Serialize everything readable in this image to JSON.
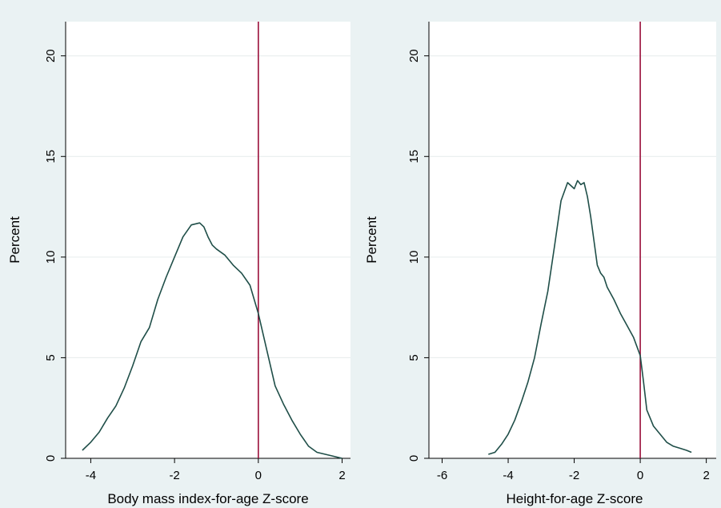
{
  "colors": {
    "outer_background": "#eaf2f3",
    "plot_background": "#ffffff",
    "gridline": "#e6ecec",
    "density_line": "#1f4e48",
    "reference_line": "#9a0f3a"
  },
  "chart_data": [
    {
      "type": "line",
      "xlabel": "Body mass index-for-age Z-score",
      "ylabel": "Percent",
      "xlim": [
        -4.6,
        2.2
      ],
      "ylim": [
        0,
        21.7
      ],
      "x_ticks": [
        -4,
        -2,
        0,
        2
      ],
      "y_ticks": [
        0,
        5,
        10,
        15,
        20
      ],
      "grid": true,
      "reference_line_x": 0,
      "series": [
        {
          "x": [
            -4.2,
            -4.0,
            -3.8,
            -3.6,
            -3.4,
            -3.2,
            -3.0,
            -2.8,
            -2.6,
            -2.4,
            -2.2,
            -2.0,
            -1.8,
            -1.6,
            -1.4,
            -1.3,
            -1.2,
            -1.1,
            -1.0,
            -0.8,
            -0.6,
            -0.4,
            -0.2,
            0.0,
            0.2,
            0.4,
            0.6,
            0.8,
            1.0,
            1.2,
            1.4,
            1.6,
            1.8,
            2.0
          ],
          "y": [
            0.4,
            0.8,
            1.3,
            2.0,
            2.6,
            3.5,
            4.6,
            5.8,
            6.5,
            7.9,
            9.0,
            10.0,
            11.0,
            11.6,
            11.7,
            11.5,
            11.0,
            10.6,
            10.4,
            10.1,
            9.6,
            9.2,
            8.6,
            7.2,
            5.4,
            3.6,
            2.7,
            1.9,
            1.2,
            0.6,
            0.3,
            0.2,
            0.1,
            0.0
          ]
        }
      ]
    },
    {
      "type": "line",
      "xlabel": "Height-for-age Z-score",
      "ylabel": "Percent",
      "xlim": [
        -6.4,
        2.3
      ],
      "ylim": [
        0,
        21.7
      ],
      "x_ticks": [
        -6,
        -4,
        -2,
        0,
        2
      ],
      "y_ticks": [
        0,
        5,
        10,
        15,
        20
      ],
      "grid": true,
      "reference_line_x": 0,
      "series": [
        {
          "x": [
            -4.6,
            -4.4,
            -4.2,
            -4.0,
            -3.8,
            -3.6,
            -3.4,
            -3.2,
            -3.0,
            -2.8,
            -2.6,
            -2.4,
            -2.2,
            -2.0,
            -1.9,
            -1.8,
            -1.7,
            -1.6,
            -1.5,
            -1.4,
            -1.3,
            -1.2,
            -1.1,
            -1.0,
            -0.8,
            -0.6,
            -0.4,
            -0.2,
            0.0,
            0.1,
            0.2,
            0.3,
            0.4,
            0.6,
            0.8,
            1.0,
            1.2,
            1.4,
            1.55
          ],
          "y": [
            0.2,
            0.3,
            0.7,
            1.2,
            1.9,
            2.8,
            3.8,
            5.0,
            6.7,
            8.3,
            10.5,
            12.8,
            13.7,
            13.4,
            13.8,
            13.6,
            13.7,
            13.0,
            12.0,
            10.8,
            9.6,
            9.2,
            9.0,
            8.5,
            7.9,
            7.2,
            6.6,
            6.0,
            5.1,
            3.8,
            2.4,
            2.0,
            1.6,
            1.2,
            0.8,
            0.6,
            0.5,
            0.4,
            0.3
          ]
        }
      ]
    }
  ]
}
